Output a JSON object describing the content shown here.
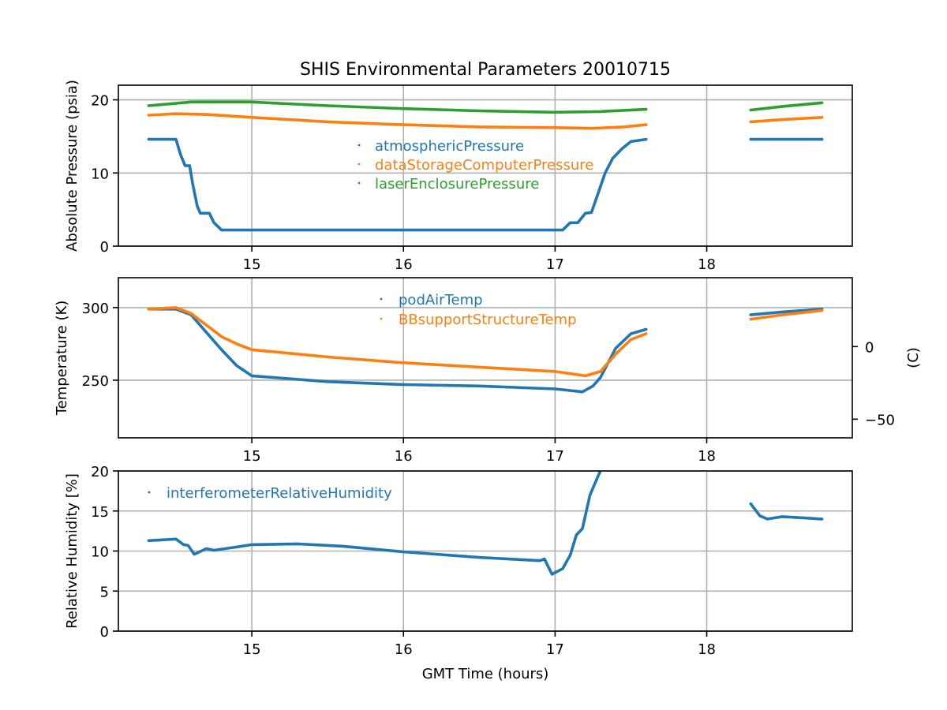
{
  "chart_data": [
    {
      "type": "scatter",
      "id": "pressure",
      "title": "SHIS Environmental Parameters 20010715",
      "xlabel": "",
      "ylabel": "Absolute Pressure (psia)",
      "xlim": [
        14.12,
        18.96
      ],
      "ylim": [
        0,
        22
      ],
      "xticks": [
        15,
        16,
        17,
        18
      ],
      "yticks": [
        0,
        10,
        20
      ],
      "grid": true,
      "legend_position": "center",
      "series": [
        {
          "name": "atmosphericPressure",
          "color": "#1f77b4",
          "segments": [
            [
              [
                14.32,
                14.6
              ],
              [
                14.5,
                14.6
              ],
              [
                14.53,
                12.5
              ],
              [
                14.56,
                11.0
              ],
              [
                14.59,
                11.0
              ],
              [
                14.61,
                8.5
              ],
              [
                14.64,
                5.5
              ],
              [
                14.66,
                4.5
              ],
              [
                14.72,
                4.5
              ],
              [
                14.75,
                3.2
              ],
              [
                14.8,
                2.2
              ],
              [
                15.5,
                2.2
              ],
              [
                16.0,
                2.2
              ],
              [
                16.5,
                2.2
              ],
              [
                17.05,
                2.2
              ],
              [
                17.1,
                3.2
              ],
              [
                17.15,
                3.2
              ],
              [
                17.2,
                4.5
              ],
              [
                17.24,
                4.6
              ],
              [
                17.28,
                7.0
              ],
              [
                17.33,
                10.0
              ],
              [
                17.38,
                12.0
              ],
              [
                17.44,
                13.3
              ],
              [
                17.5,
                14.3
              ],
              [
                17.6,
                14.6
              ]
            ],
            [
              [
                18.29,
                14.6
              ],
              [
                18.5,
                14.6
              ],
              [
                18.76,
                14.6
              ]
            ]
          ]
        },
        {
          "name": "dataStorageComputerPressure",
          "color": "#ff7f0e",
          "segments": [
            [
              [
                14.32,
                17.9
              ],
              [
                14.5,
                18.1
              ],
              [
                14.7,
                18.0
              ],
              [
                15.0,
                17.6
              ],
              [
                15.5,
                17.0
              ],
              [
                16.0,
                16.6
              ],
              [
                16.5,
                16.3
              ],
              [
                17.0,
                16.2
              ],
              [
                17.25,
                16.1
              ],
              [
                17.45,
                16.3
              ],
              [
                17.6,
                16.6
              ]
            ],
            [
              [
                18.29,
                17.0
              ],
              [
                18.5,
                17.3
              ],
              [
                18.76,
                17.6
              ]
            ]
          ]
        },
        {
          "name": "laserEnclosurePressure",
          "color": "#2ca02c",
          "segments": [
            [
              [
                14.32,
                19.2
              ],
              [
                14.6,
                19.7
              ],
              [
                15.0,
                19.7
              ],
              [
                15.5,
                19.2
              ],
              [
                16.0,
                18.8
              ],
              [
                16.5,
                18.5
              ],
              [
                17.0,
                18.3
              ],
              [
                17.3,
                18.4
              ],
              [
                17.6,
                18.7
              ]
            ],
            [
              [
                18.29,
                18.6
              ],
              [
                18.5,
                19.1
              ],
              [
                18.76,
                19.6
              ]
            ]
          ]
        }
      ]
    },
    {
      "type": "scatter",
      "id": "temperature",
      "title": "",
      "xlabel": "",
      "ylabel": "Temperature (K)",
      "ylabel_right": "(C)",
      "xlim": [
        14.12,
        18.96
      ],
      "ylim": [
        210.3,
        320.6
      ],
      "xticks": [
        15,
        16,
        17,
        18
      ],
      "yticks": [
        250,
        300
      ],
      "yticks_right_celsius": [
        -50,
        0
      ],
      "grid": true,
      "legend_position": "upper-center",
      "series": [
        {
          "name": "podAirTemp",
          "color": "#1f77b4",
          "segments": [
            [
              [
                14.32,
                299
              ],
              [
                14.5,
                299
              ],
              [
                14.6,
                295
              ],
              [
                14.7,
                283
              ],
              [
                14.8,
                271
              ],
              [
                14.9,
                260
              ],
              [
                15.0,
                253
              ],
              [
                15.5,
                249
              ],
              [
                16.0,
                247
              ],
              [
                16.5,
                246
              ],
              [
                17.0,
                244
              ],
              [
                17.18,
                242
              ],
              [
                17.25,
                246
              ],
              [
                17.3,
                252
              ],
              [
                17.4,
                272
              ],
              [
                17.5,
                282
              ],
              [
                17.6,
                285
              ]
            ],
            [
              [
                18.29,
                295
              ],
              [
                18.5,
                297
              ],
              [
                18.76,
                299
              ]
            ]
          ]
        },
        {
          "name": "BBsupportStructureTemp",
          "color": "#ff7f0e",
          "segments": [
            [
              [
                14.32,
                299
              ],
              [
                14.5,
                300
              ],
              [
                14.6,
                296
              ],
              [
                14.7,
                288
              ],
              [
                14.8,
                280
              ],
              [
                14.9,
                275
              ],
              [
                15.0,
                271
              ],
              [
                15.5,
                266
              ],
              [
                16.0,
                262
              ],
              [
                16.5,
                259
              ],
              [
                17.0,
                256
              ],
              [
                17.2,
                253
              ],
              [
                17.3,
                256
              ],
              [
                17.4,
                268
              ],
              [
                17.5,
                278
              ],
              [
                17.6,
                282
              ]
            ],
            [
              [
                18.29,
                292
              ],
              [
                18.5,
                295
              ],
              [
                18.76,
                298
              ]
            ]
          ]
        }
      ]
    },
    {
      "type": "scatter",
      "id": "humidity",
      "title": "",
      "xlabel": "GMT Time (hours)",
      "ylabel": "Relative Humidity [%]",
      "xlim": [
        14.12,
        18.96
      ],
      "ylim": [
        0,
        20
      ],
      "xticks": [
        15,
        16,
        17,
        18
      ],
      "yticks": [
        0,
        5,
        10,
        15,
        20
      ],
      "grid": true,
      "legend_position": "upper-left",
      "series": [
        {
          "name": "interferometerRelativeHumidity",
          "color": "#1f77b4",
          "segments": [
            [
              [
                14.32,
                11.3
              ],
              [
                14.5,
                11.5
              ],
              [
                14.55,
                10.8
              ],
              [
                14.58,
                10.7
              ],
              [
                14.62,
                9.6
              ],
              [
                14.7,
                10.3
              ],
              [
                14.75,
                10.1
              ],
              [
                14.9,
                10.5
              ],
              [
                15.0,
                10.8
              ],
              [
                15.3,
                10.9
              ],
              [
                15.6,
                10.6
              ],
              [
                16.0,
                9.9
              ],
              [
                16.5,
                9.2
              ],
              [
                16.9,
                8.8
              ],
              [
                16.93,
                9.0
              ],
              [
                16.98,
                7.1
              ],
              [
                17.05,
                7.8
              ],
              [
                17.1,
                9.5
              ],
              [
                17.14,
                12.0
              ],
              [
                17.18,
                12.8
              ],
              [
                17.23,
                17.0
              ],
              [
                17.28,
                19.2
              ],
              [
                17.31,
                20.5
              ]
            ],
            [
              [
                18.29,
                15.9
              ],
              [
                18.35,
                14.4
              ],
              [
                18.4,
                14.0
              ],
              [
                18.5,
                14.3
              ],
              [
                18.76,
                14.0
              ]
            ]
          ]
        }
      ]
    }
  ]
}
